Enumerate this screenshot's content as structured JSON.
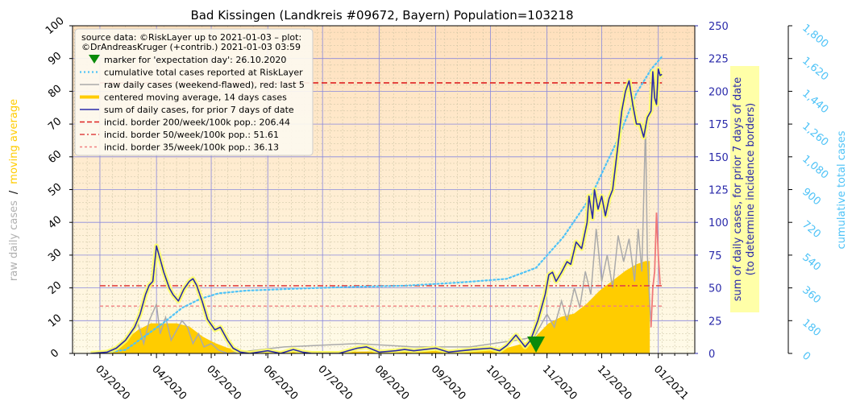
{
  "chart_data": {
    "type": "line",
    "title": "Bad Kissingen (Landkreis #09672, Bayern) Population=103218",
    "left_axis": {
      "label_part1": "raw daily cases",
      "label_sep": "/",
      "label_part2": "moving average",
      "label_part1_color": "#b0b0b0",
      "label_part2_color": "#ffcc00",
      "ylim": [
        0,
        100
      ],
      "ticks": [
        "0",
        "10",
        "20",
        "30",
        "40",
        "50",
        "60",
        "70",
        "80",
        "90",
        "100"
      ]
    },
    "right_axis": {
      "label_line1": "sum of daily cases, for prior 7 days of date",
      "label_line2": "(to determine incidence borders)",
      "ylim": [
        0,
        250
      ],
      "ticks": [
        "0",
        "25",
        "50",
        "75",
        "100",
        "125",
        "150",
        "175",
        "200",
        "225",
        "250"
      ],
      "color": "#2a2aaa"
    },
    "far_right_axis": {
      "label": "cumulative total cases",
      "ylim": [
        0,
        1800
      ],
      "ticks": [
        "0",
        "180",
        "360",
        "540",
        "720",
        "900",
        "1,080",
        "1,260",
        "1,440",
        "1,620",
        "1,800"
      ],
      "color": "#4fc3f7"
    },
    "x_axis": {
      "ticks": [
        "03/2020",
        "04/2020",
        "05/2020",
        "06/2020",
        "07/2020",
        "08/2020",
        "09/2020",
        "10/2020",
        "11/2020",
        "12/2020",
        "01/2021"
      ]
    },
    "legend": {
      "header_line1": "source data: ©RiskLayer up to 2021-01-03 – plot:",
      "header_line2": "©DrAndreasKruger (+contrib.) 2021-01-03 03:59",
      "entries": [
        {
          "label": "marker for 'expectation day': 26.10.2020",
          "style": "marker",
          "color": "#0a8a0a"
        },
        {
          "label": "cumulative total cases reported at RiskLayer",
          "style": "dotted",
          "color": "#4fc3f7"
        },
        {
          "label": "raw daily cases (weekend-flawed), red: last 5",
          "style": "line",
          "color": "#aaaaaa"
        },
        {
          "label": "centered moving average, 14 days cases",
          "style": "thick",
          "color": "#ffcc00"
        },
        {
          "label": "sum of daily cases, for prior 7 days of date",
          "style": "line",
          "color": "#2a2aaa"
        },
        {
          "label": "incid. border 200/week/100k pop.: 206.44",
          "style": "dashed",
          "color": "#dd2222"
        },
        {
          "label": "incid. border 50/week/100k pop.: 51.61",
          "style": "dashdot",
          "color": "#e04444"
        },
        {
          "label": "incid. border 35/week/100k pop.: 36.13",
          "style": "dashed-light",
          "color": "#f08080"
        }
      ]
    },
    "incidence_borders": [
      206.44,
      51.61,
      36.13
    ],
    "expectation_day": "2020-10-26",
    "seven_day_sum_points": [
      [
        "2020-02-25",
        0
      ],
      [
        "2020-03-05",
        1
      ],
      [
        "2020-03-10",
        4
      ],
      [
        "2020-03-15",
        10
      ],
      [
        "2020-03-20",
        20
      ],
      [
        "2020-03-23",
        30
      ],
      [
        "2020-03-26",
        45
      ],
      [
        "2020-03-28",
        52
      ],
      [
        "2020-03-30",
        55
      ],
      [
        "2020-04-01",
        82
      ],
      [
        "2020-04-03",
        72
      ],
      [
        "2020-04-05",
        62
      ],
      [
        "2020-04-08",
        50
      ],
      [
        "2020-04-10",
        45
      ],
      [
        "2020-04-13",
        40
      ],
      [
        "2020-04-16",
        49
      ],
      [
        "2020-04-19",
        55
      ],
      [
        "2020-04-21",
        57
      ],
      [
        "2020-04-23",
        52
      ],
      [
        "2020-04-26",
        40
      ],
      [
        "2020-04-29",
        26
      ],
      [
        "2020-05-03",
        18
      ],
      [
        "2020-05-06",
        20
      ],
      [
        "2020-05-10",
        10
      ],
      [
        "2020-05-13",
        4
      ],
      [
        "2020-05-17",
        1
      ],
      [
        "2020-05-22",
        0
      ],
      [
        "2020-06-01",
        2
      ],
      [
        "2020-06-08",
        0
      ],
      [
        "2020-06-15",
        3
      ],
      [
        "2020-06-20",
        1
      ],
      [
        "2020-06-25",
        0
      ],
      [
        "2020-07-10",
        0
      ],
      [
        "2020-07-20",
        4
      ],
      [
        "2020-07-25",
        5
      ],
      [
        "2020-08-01",
        1
      ],
      [
        "2020-08-10",
        2
      ],
      [
        "2020-08-15",
        3
      ],
      [
        "2020-08-20",
        2
      ],
      [
        "2020-09-01",
        4
      ],
      [
        "2020-09-08",
        1
      ],
      [
        "2020-09-15",
        2
      ],
      [
        "2020-09-22",
        3
      ],
      [
        "2020-10-01",
        4
      ],
      [
        "2020-10-06",
        2
      ],
      [
        "2020-10-10",
        6
      ],
      [
        "2020-10-15",
        14
      ],
      [
        "2020-10-20",
        5
      ],
      [
        "2020-10-23",
        10
      ],
      [
        "2020-10-27",
        25
      ],
      [
        "2020-10-31",
        45
      ],
      [
        "2020-11-02",
        60
      ],
      [
        "2020-11-04",
        62
      ],
      [
        "2020-11-06",
        55
      ],
      [
        "2020-11-09",
        62
      ],
      [
        "2020-11-12",
        70
      ],
      [
        "2020-11-14",
        68
      ],
      [
        "2020-11-17",
        85
      ],
      [
        "2020-11-20",
        80
      ],
      [
        "2020-11-23",
        100
      ],
      [
        "2020-11-24",
        120
      ],
      [
        "2020-11-26",
        103
      ],
      [
        "2020-11-27",
        125
      ],
      [
        "2020-11-29",
        110
      ],
      [
        "2020-12-01",
        120
      ],
      [
        "2020-12-03",
        105
      ],
      [
        "2020-12-05",
        118
      ],
      [
        "2020-12-07",
        125
      ],
      [
        "2020-12-10",
        160
      ],
      [
        "2020-12-12",
        185
      ],
      [
        "2020-12-14",
        200
      ],
      [
        "2020-12-16",
        208
      ],
      [
        "2020-12-18",
        190
      ],
      [
        "2020-12-20",
        175
      ],
      [
        "2020-12-22",
        175
      ],
      [
        "2020-12-24",
        165
      ],
      [
        "2020-12-26",
        180
      ],
      [
        "2020-12-28",
        185
      ],
      [
        "2020-12-29",
        215
      ],
      [
        "2020-12-30",
        195
      ],
      [
        "2020-12-31",
        190
      ],
      [
        "2021-01-01",
        217
      ],
      [
        "2021-01-02",
        212
      ],
      [
        "2021-01-03",
        213
      ]
    ],
    "moving_average_points": [
      [
        "2020-02-25",
        0
      ],
      [
        "2020-03-08",
        1
      ],
      [
        "2020-03-15",
        4
      ],
      [
        "2020-03-22",
        7
      ],
      [
        "2020-03-29",
        9
      ],
      [
        "2020-04-05",
        9
      ],
      [
        "2020-04-12",
        9
      ],
      [
        "2020-04-19",
        8
      ],
      [
        "2020-04-26",
        5
      ],
      [
        "2020-05-03",
        3
      ],
      [
        "2020-05-10",
        1.5
      ],
      [
        "2020-05-20",
        0.5
      ],
      [
        "2020-06-10",
        0.5
      ],
      [
        "2020-07-20",
        0.4
      ],
      [
        "2020-08-20",
        0.5
      ],
      [
        "2020-09-20",
        0.8
      ],
      [
        "2020-10-10",
        1.5
      ],
      [
        "2020-10-20",
        3
      ],
      [
        "2020-10-26",
        5
      ],
      [
        "2020-11-02",
        9
      ],
      [
        "2020-11-09",
        11
      ],
      [
        "2020-11-16",
        12
      ],
      [
        "2020-11-23",
        15
      ],
      [
        "2020-11-30",
        19
      ],
      [
        "2020-12-07",
        22
      ],
      [
        "2020-12-14",
        25
      ],
      [
        "2020-12-20",
        27
      ],
      [
        "2020-12-25",
        28
      ],
      [
        "2020-12-27",
        28
      ]
    ],
    "raw_daily_points": [
      [
        "2020-03-01",
        0
      ],
      [
        "2020-03-10",
        2
      ],
      [
        "2020-03-14",
        4
      ],
      [
        "2020-03-18",
        6
      ],
      [
        "2020-03-22",
        9
      ],
      [
        "2020-03-25",
        3
      ],
      [
        "2020-03-28",
        10
      ],
      [
        "2020-04-01",
        15
      ],
      [
        "2020-04-03",
        6
      ],
      [
        "2020-04-06",
        11
      ],
      [
        "2020-04-09",
        4
      ],
      [
        "2020-04-12",
        7
      ],
      [
        "2020-04-15",
        10
      ],
      [
        "2020-04-18",
        8
      ],
      [
        "2020-04-21",
        3
      ],
      [
        "2020-04-24",
        6
      ],
      [
        "2020-04-27",
        2
      ],
      [
        "2020-05-01",
        3
      ],
      [
        "2020-05-05",
        1
      ],
      [
        "2020-05-10",
        0
      ],
      [
        "2020-06-10",
        2
      ],
      [
        "2020-07-20",
        3
      ],
      [
        "2020-08-20",
        2
      ],
      [
        "2020-09-20",
        2
      ],
      [
        "2020-10-15",
        4
      ],
      [
        "2020-10-25",
        5
      ],
      [
        "2020-11-01",
        12
      ],
      [
        "2020-11-05",
        8
      ],
      [
        "2020-11-09",
        16
      ],
      [
        "2020-11-12",
        10
      ],
      [
        "2020-11-16",
        20
      ],
      [
        "2020-11-19",
        14
      ],
      [
        "2020-11-22",
        25
      ],
      [
        "2020-11-25",
        18
      ],
      [
        "2020-11-28",
        38
      ],
      [
        "2020-12-01",
        22
      ],
      [
        "2020-12-04",
        30
      ],
      [
        "2020-12-07",
        20
      ],
      [
        "2020-12-10",
        36
      ],
      [
        "2020-12-13",
        28
      ],
      [
        "2020-12-16",
        35
      ],
      [
        "2020-12-19",
        22
      ],
      [
        "2020-12-21",
        38
      ],
      [
        "2020-12-23",
        25
      ],
      [
        "2020-12-25",
        70
      ],
      [
        "2020-12-26",
        30
      ],
      [
        "2020-12-28",
        8
      ]
    ],
    "raw_daily_last5_points": [
      [
        "2020-12-29",
        20
      ],
      [
        "2020-12-30",
        25
      ],
      [
        "2020-12-31",
        43
      ],
      [
        "2021-01-01",
        30
      ],
      [
        "2021-01-02",
        21
      ]
    ],
    "cumulative_points": [
      [
        "2020-03-01",
        0
      ],
      [
        "2020-03-15",
        20
      ],
      [
        "2020-03-25",
        90
      ],
      [
        "2020-04-05",
        170
      ],
      [
        "2020-04-15",
        250
      ],
      [
        "2020-04-25",
        300
      ],
      [
        "2020-05-05",
        330
      ],
      [
        "2020-05-20",
        345
      ],
      [
        "2020-06-15",
        355
      ],
      [
        "2020-07-15",
        365
      ],
      [
        "2020-08-15",
        372
      ],
      [
        "2020-09-15",
        390
      ],
      [
        "2020-10-10",
        410
      ],
      [
        "2020-10-26",
        470
      ],
      [
        "2020-11-10",
        640
      ],
      [
        "2020-11-25",
        860
      ],
      [
        "2020-12-10",
        1180
      ],
      [
        "2020-12-20",
        1430
      ],
      [
        "2020-12-28",
        1560
      ],
      [
        "2021-01-03",
        1630
      ]
    ]
  }
}
